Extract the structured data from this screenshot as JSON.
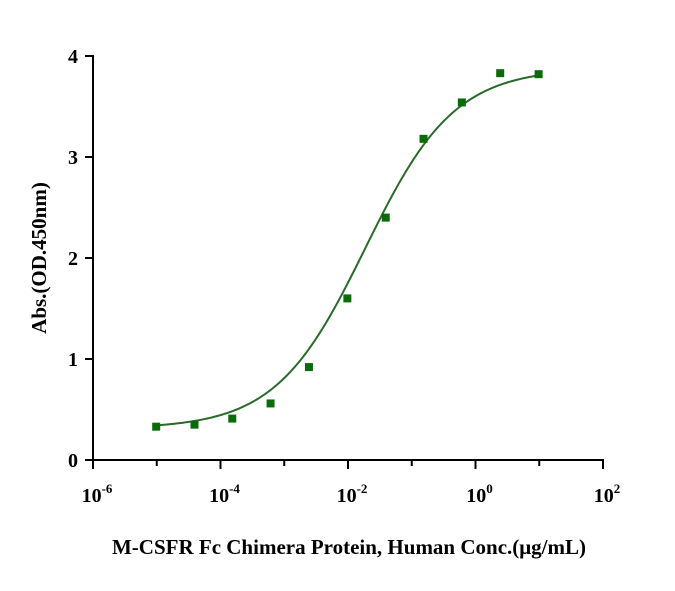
{
  "chart_data": {
    "type": "scatter",
    "title": "",
    "xlabel": "M-CSFR Fc Chimera Protein, Human Conc.(μg/mL)",
    "ylabel": "Abs.(OD.450nm)",
    "x_scale": "log10",
    "xlim": [
      1e-06,
      100
    ],
    "ylim": [
      0,
      4
    ],
    "x_ticks": [
      {
        "value": 1e-06,
        "base": "10",
        "exp": "-6"
      },
      {
        "value": 0.0001,
        "base": "10",
        "exp": "-4"
      },
      {
        "value": 0.01,
        "base": "10",
        "exp": "-2"
      },
      {
        "value": 1,
        "base": "10",
        "exp": "0"
      },
      {
        "value": 100,
        "base": "10",
        "exp": "2"
      }
    ],
    "y_ticks": [
      "0",
      "1",
      "2",
      "3",
      "4"
    ],
    "grid": false,
    "legend": "none",
    "series": [
      {
        "marker": "square",
        "color": "#0a6b0a",
        "x": [
          9.8e-06,
          3.91e-05,
          0.000153,
          0.00061,
          0.00244,
          0.00977,
          0.0391,
          0.153,
          0.61,
          2.44,
          9.77
        ],
        "y": [
          0.33,
          0.35,
          0.41,
          0.56,
          0.92,
          1.6,
          2.4,
          3.18,
          3.54,
          3.83,
          3.82
        ]
      }
    ],
    "fit": {
      "type": "4PL",
      "color": "#2a6a2a",
      "bottom": 0.31,
      "top": 3.88,
      "ec50": 0.0186,
      "hill": 0.62,
      "x_range": [
        9.8e-06,
        9.77
      ]
    }
  }
}
